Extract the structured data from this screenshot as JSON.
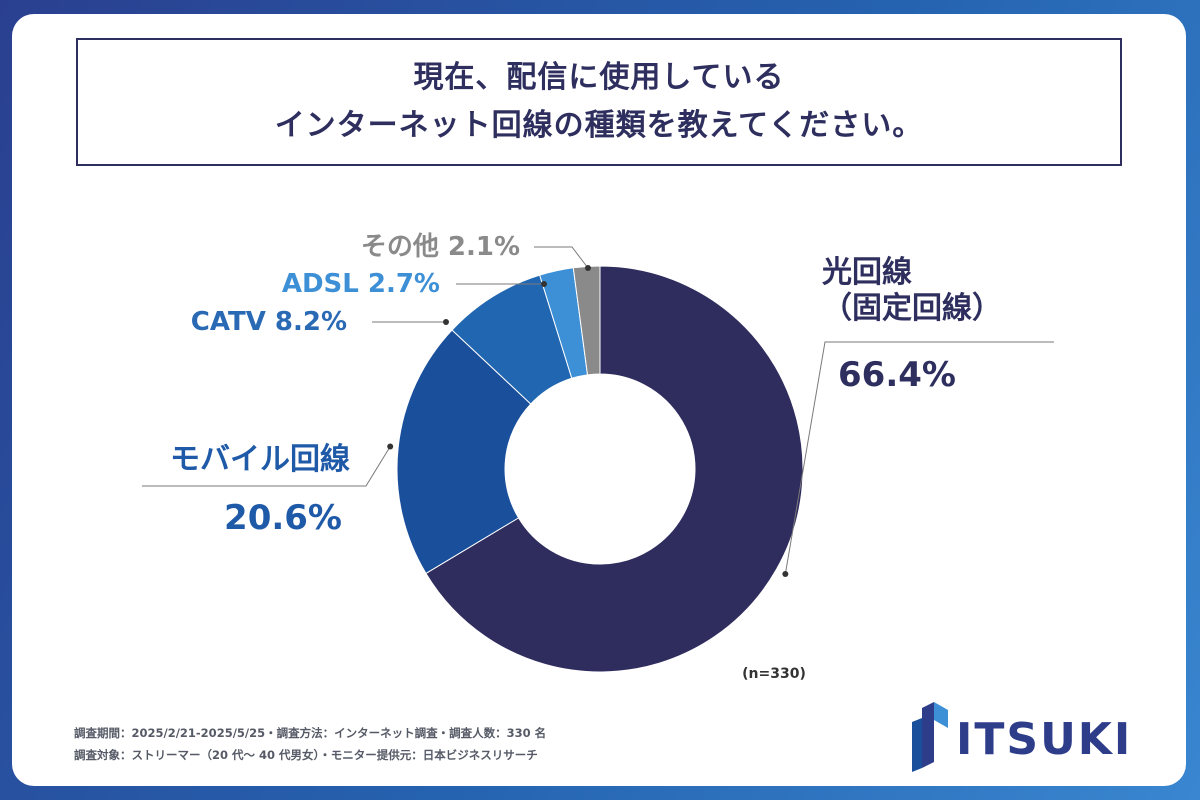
{
  "title": {
    "line1": "現在、配信に使用している",
    "line2": "インターネット回線の種類を教えてください。"
  },
  "chart_data": {
    "type": "pie",
    "donut": true,
    "n_label": "(n=330)",
    "slices": [
      {
        "name_lines": [
          "光回線",
          "（固定回線）"
        ],
        "value": 66.4,
        "label": "66.4%",
        "color": "#2f2c5e",
        "label_color": "#2e2f5e"
      },
      {
        "name_lines": [
          "モバイル回線"
        ],
        "value": 20.6,
        "label": "20.6%",
        "color": "#1a4f9c",
        "label_color": "#1e5aa8"
      },
      {
        "name_lines": [
          "CATV"
        ],
        "value": 8.2,
        "label": "8.2%",
        "color": "#2166b1",
        "label_color": "#2a6ab4"
      },
      {
        "name_lines": [
          "ADSL"
        ],
        "value": 2.7,
        "label": "2.7%",
        "color": "#3d8fd6",
        "label_color": "#3d8fd6"
      },
      {
        "name_lines": [
          "その他"
        ],
        "value": 2.1,
        "label": "2.1%",
        "color": "#8a8a8a",
        "label_color": "#8a8a8a"
      }
    ]
  },
  "footer": {
    "line1": "調査期間：2025/2/21-2025/5/25・調査方法：インターネット調査・調査人数：330 名",
    "line2": "調査対象：ストリーマー（20 代〜 40 代男女）・モニター提供元：日本ビジネスリサーチ"
  },
  "logo": {
    "text": "ITSUKI",
    "color": "#2e3d8a",
    "accent": "#3d8fd6"
  }
}
